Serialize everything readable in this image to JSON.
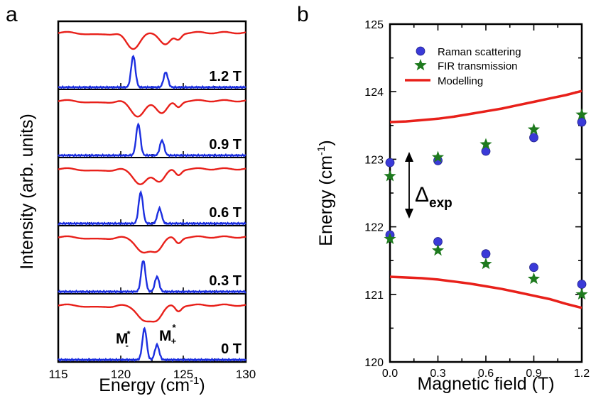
{
  "panel_a": {
    "letter": "a",
    "xlabel": "Energy (cm",
    "xlabel_sup": "-1",
    "xlabel_end": ")",
    "ylabel": "Intensity (arb. units)",
    "xticks": [
      "115",
      "120",
      "125",
      "130"
    ],
    "field_labels": [
      "1.2 T",
      "0.9 T",
      "0.6 T",
      "0.3 T",
      "0 T"
    ],
    "mode_minus": {
      "base": "M",
      "sup": "*",
      "sub": "-"
    },
    "mode_plus": {
      "base": "M",
      "sup": "*",
      "sub": "+"
    }
  },
  "panel_b": {
    "letter": "b",
    "xlabel": "Magnetic field (T)",
    "ylabel": "Energy (cm",
    "ylabel_sup": "-1",
    "ylabel_end": ")",
    "xticks": [
      "0.0",
      "0.3",
      "0.6",
      "0.9",
      "1.2"
    ],
    "yticks": [
      "120",
      "121",
      "122",
      "123",
      "124",
      "125"
    ],
    "delta_base": "Δ",
    "delta_sub": "exp",
    "legend": [
      "Raman scattering",
      "FIR transmission",
      "Modelling"
    ]
  },
  "colors": {
    "raman": "#3a3ad8",
    "fir": "#1e7a1e",
    "model": "#e8201a",
    "spectrum_blue": "#1c2fe0",
    "spectrum_red": "#e8201a"
  },
  "chart_data": [
    {
      "type": "line",
      "title": "",
      "xlabel": "Energy (cm-1)",
      "ylabel": "Intensity (arb. units)",
      "xlim": [
        115,
        130
      ],
      "traces": [
        {
          "field": "1.2 T",
          "raman_peaks": [
            121.0,
            123.6
          ],
          "fir_dips": [
            121.0,
            123.6
          ]
        },
        {
          "field": "0.9 T",
          "raman_peaks": [
            121.4,
            123.3
          ],
          "fir_dips": [
            121.4,
            123.3
          ]
        },
        {
          "field": "0.6 T",
          "raman_peaks": [
            121.6,
            123.1
          ],
          "fir_dips": [
            121.6,
            123.1
          ]
        },
        {
          "field": "0.3 T",
          "raman_peaks": [
            121.8,
            122.9
          ],
          "fir_dips": [
            121.8,
            122.9
          ]
        },
        {
          "field": "0 T",
          "raman_peaks": [
            121.9,
            122.9
          ],
          "fir_dips": [
            121.9,
            122.9
          ]
        }
      ]
    },
    {
      "type": "scatter",
      "title": "",
      "xlabel": "Magnetic field (T)",
      "ylabel": "Energy (cm-1)",
      "xlim": [
        0,
        1.2
      ],
      "ylim": [
        120,
        125
      ],
      "legend_position": "top-right",
      "series": [
        {
          "name": "Raman scattering",
          "x": [
            0,
            0,
            0.3,
            0.3,
            0.6,
            0.6,
            0.9,
            0.9,
            1.2,
            1.2
          ],
          "y": [
            122.95,
            121.88,
            122.98,
            121.78,
            123.12,
            121.6,
            123.32,
            121.4,
            123.55,
            121.15
          ]
        },
        {
          "name": "FIR transmission",
          "x": [
            0,
            0,
            0.3,
            0.3,
            0.6,
            0.6,
            0.9,
            0.9,
            1.2,
            1.2
          ],
          "y": [
            122.75,
            121.82,
            123.03,
            121.65,
            123.22,
            121.45,
            123.44,
            121.23,
            123.66,
            121.0
          ]
        },
        {
          "name": "Modelling",
          "x": [
            0,
            0.1,
            0.2,
            0.3,
            0.4,
            0.5,
            0.6,
            0.7,
            0.8,
            0.9,
            1.0,
            1.1,
            1.2
          ],
          "y": [
            123.55,
            123.56,
            123.58,
            123.6,
            123.63,
            123.67,
            123.71,
            123.75,
            123.8,
            123.85,
            123.9,
            123.95,
            124.01
          ]
        },
        {
          "name": "Modelling",
          "x": [
            0,
            0.1,
            0.2,
            0.3,
            0.4,
            0.5,
            0.6,
            0.7,
            0.8,
            0.9,
            1.0,
            1.1,
            1.2
          ],
          "y": [
            121.26,
            121.25,
            121.24,
            121.22,
            121.19,
            121.16,
            121.12,
            121.08,
            121.03,
            120.98,
            120.93,
            120.86,
            120.8
          ]
        }
      ]
    }
  ]
}
